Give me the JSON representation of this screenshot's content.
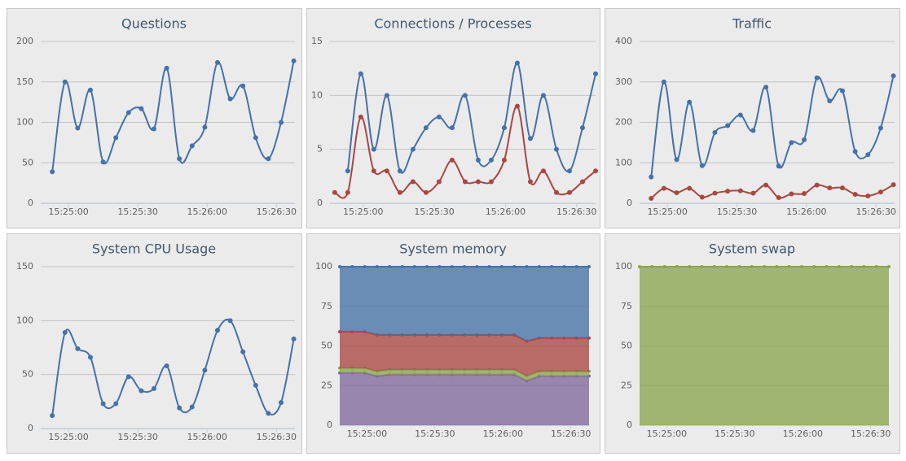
{
  "chart_data": [
    {
      "type": "spline",
      "title": "Questions",
      "grid": true,
      "x": [
        55493,
        55498.5,
        55504,
        55509.5,
        55515,
        55520.5,
        55526,
        55531.5,
        55537,
        55542.5,
        55548,
        55553.5,
        55559,
        55564.5,
        55570,
        55575.5,
        55581,
        55586.5,
        55592,
        55597.5
      ],
      "xlim": [
        55488,
        55598
      ],
      "xticks": [
        {
          "value": 55500,
          "label": "15:25:00"
        },
        {
          "value": 55530,
          "label": "15:25:30"
        },
        {
          "value": 55560,
          "label": "15:26:00"
        },
        {
          "value": 55590,
          "label": "15:26:30"
        }
      ],
      "ylim": [
        0,
        200
      ],
      "yticks": [
        0,
        50,
        100,
        150,
        200
      ],
      "series": [
        {
          "color": "#4572a7",
          "values": [
            39,
            150,
            93,
            140,
            51,
            81,
            112,
            117,
            92,
            167,
            55,
            71,
            94,
            174,
            129,
            145,
            81,
            55,
            100,
            176
          ]
        }
      ]
    },
    {
      "type": "spline",
      "title": "Connections / Processes",
      "grid": true,
      "x": [
        55488,
        55493.5,
        55499,
        55504.5,
        55510,
        55515.5,
        55521,
        55526.5,
        55532,
        55537.5,
        55543,
        55548.5,
        55554,
        55559.5,
        55565,
        55570.5,
        55576,
        55581.5,
        55587,
        55592.5,
        55598
      ],
      "xlim": [
        55486,
        55598
      ],
      "xticks": [
        {
          "value": 55500,
          "label": "15:25:00"
        },
        {
          "value": 55530,
          "label": "15:25:30"
        },
        {
          "value": 55560,
          "label": "15:26:00"
        },
        {
          "value": 55590,
          "label": "15:26:30"
        }
      ],
      "ylim": [
        0,
        15
      ],
      "yticks": [
        0,
        5,
        10,
        15
      ],
      "series": [
        {
          "color": "#4572a7",
          "values": [
            null,
            3,
            12,
            5,
            10,
            3,
            5,
            7,
            8,
            7,
            10,
            4,
            4,
            7,
            13,
            6,
            10,
            5,
            3,
            7,
            12
          ]
        },
        {
          "color": "#aa4643",
          "values": [
            1,
            1,
            8,
            3,
            3,
            1,
            2,
            1,
            2,
            4,
            2,
            2,
            2,
            4,
            9,
            2,
            3,
            1,
            1,
            2,
            3
          ]
        }
      ]
    },
    {
      "type": "spline",
      "title": "Traffic",
      "grid": true,
      "x": [
        55493,
        55498.5,
        55504,
        55509.5,
        55515,
        55520.5,
        55526,
        55531.5,
        55537,
        55542.5,
        55548,
        55553.5,
        55559,
        55564.5,
        55570,
        55575.5,
        55581,
        55586.5,
        55592,
        55597.5
      ],
      "xlim": [
        55488,
        55598
      ],
      "xticks": [
        {
          "value": 55500,
          "label": "15:25:00"
        },
        {
          "value": 55530,
          "label": "15:25:30"
        },
        {
          "value": 55560,
          "label": "15:26:00"
        },
        {
          "value": 55590,
          "label": "15:26:30"
        }
      ],
      "ylim": [
        0,
        400
      ],
      "yticks": [
        0,
        100,
        200,
        300,
        400
      ],
      "series": [
        {
          "color": "#4572a7",
          "values": [
            65,
            300,
            108,
            250,
            93,
            175,
            192,
            218,
            180,
            287,
            92,
            150,
            157,
            310,
            253,
            278,
            128,
            120,
            186,
            315
          ]
        },
        {
          "color": "#aa4643",
          "values": [
            12,
            37,
            26,
            37,
            15,
            25,
            30,
            31,
            25,
            45,
            14,
            23,
            24,
            45,
            38,
            38,
            22,
            18,
            28,
            46
          ]
        }
      ]
    },
    {
      "type": "spline",
      "title": "System CPU Usage",
      "grid": true,
      "x": [
        55493,
        55498.5,
        55504,
        55509.5,
        55515,
        55520.5,
        55526,
        55531.5,
        55537,
        55542.5,
        55548,
        55553.5,
        55559,
        55564.5,
        55570,
        55575.5,
        55581,
        55586.5,
        55592,
        55597.5
      ],
      "xlim": [
        55488,
        55598
      ],
      "xticks": [
        {
          "value": 55500,
          "label": "15:25:00"
        },
        {
          "value": 55530,
          "label": "15:25:30"
        },
        {
          "value": 55560,
          "label": "15:26:00"
        },
        {
          "value": 55590,
          "label": "15:26:30"
        }
      ],
      "ylim": [
        0,
        150
      ],
      "yticks": [
        0,
        50,
        100,
        150
      ],
      "series": [
        {
          "color": "#4572a7",
          "values": [
            12,
            89,
            74,
            66,
            23,
            23,
            48,
            35,
            37,
            58,
            19,
            20,
            54,
            91,
            100,
            71,
            40,
            14,
            24,
            83
          ]
        }
      ]
    },
    {
      "type": "area",
      "title": "System memory",
      "grid": true,
      "stacked": true,
      "x": [
        55488,
        55493.5,
        55499,
        55504.5,
        55510,
        55515.5,
        55521,
        55526.5,
        55532,
        55537.5,
        55543,
        55548.5,
        55554,
        55559.5,
        55565,
        55570.5,
        55576,
        55581.5,
        55587,
        55592.5,
        55598
      ],
      "xlim": [
        55488,
        55598
      ],
      "xticks": [
        {
          "value": 55500,
          "label": "15:25:00"
        },
        {
          "value": 55530,
          "label": "15:25:30"
        },
        {
          "value": 55560,
          "label": "15:26:00"
        },
        {
          "value": 55590,
          "label": "15:26:30"
        }
      ],
      "ylim": [
        0,
        100
      ],
      "yticks": [
        0,
        25,
        50,
        75,
        100
      ],
      "series": [
        {
          "color": "#80699b",
          "values": [
            33,
            33,
            33,
            31,
            32,
            32,
            32,
            32,
            32,
            32,
            32,
            32,
            32,
            32,
            32,
            28,
            31,
            31,
            31,
            31,
            31
          ]
        },
        {
          "color": "#89a54e",
          "values": [
            3,
            3,
            3,
            3,
            3,
            3,
            3,
            3,
            3,
            3,
            3,
            3,
            3,
            3,
            3,
            3,
            3,
            3,
            3,
            3,
            3
          ]
        },
        {
          "color": "#aa4643",
          "values": [
            23,
            23,
            23,
            23,
            22,
            22,
            22,
            22,
            22,
            22,
            22,
            22,
            22,
            22,
            22,
            22,
            21,
            21,
            21,
            21,
            21
          ]
        },
        {
          "color": "#4572a7",
          "values": [
            41,
            41,
            41,
            43,
            43,
            43,
            43,
            43,
            43,
            43,
            43,
            43,
            43,
            43,
            43,
            47,
            45,
            45,
            45,
            45,
            45
          ]
        }
      ]
    },
    {
      "type": "area",
      "title": "System swap",
      "grid": true,
      "stacked": true,
      "x": [
        55488,
        55493.5,
        55499,
        55504.5,
        55510,
        55515.5,
        55521,
        55526.5,
        55532,
        55537.5,
        55543,
        55548.5,
        55554,
        55559.5,
        55565,
        55570.5,
        55576,
        55581.5,
        55587,
        55592.5,
        55598
      ],
      "xlim": [
        55488,
        55598
      ],
      "xticks": [
        {
          "value": 55500,
          "label": "15:25:00"
        },
        {
          "value": 55530,
          "label": "15:25:30"
        },
        {
          "value": 55560,
          "label": "15:26:00"
        },
        {
          "value": 55590,
          "label": "15:26:30"
        }
      ],
      "ylim": [
        0,
        100
      ],
      "yticks": [
        0,
        25,
        50,
        75,
        100
      ],
      "series": [
        {
          "color": "#89a54e",
          "values": [
            100,
            100,
            100,
            100,
            100,
            100,
            100,
            100,
            100,
            100,
            100,
            100,
            100,
            100,
            100,
            100,
            100,
            100,
            100,
            100,
            100
          ]
        }
      ]
    }
  ]
}
